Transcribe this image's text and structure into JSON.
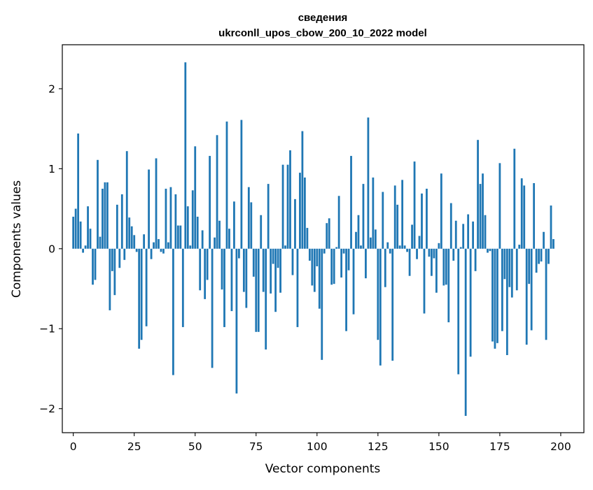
{
  "chart_data": {
    "type": "bar",
    "title": "сведения",
    "subtitle": "ukrconll_upos_cbow_200_10_2022 model",
    "xlabel": "Vector components",
    "ylabel": "Components values",
    "xlim": [
      -4.5,
      209.5
    ],
    "ylim": [
      -2.3,
      2.55
    ],
    "x_ticks": [
      0,
      25,
      50,
      75,
      100,
      125,
      150,
      175,
      200
    ],
    "y_ticks": [
      -2,
      -1,
      0,
      1,
      2
    ],
    "y_tick_labels": [
      "−2",
      "−1",
      "0",
      "1",
      "2"
    ],
    "grid": false,
    "bar_color": "#1f77b4",
    "values": [
      0.4,
      0.5,
      1.44,
      0.34,
      -0.05,
      0.04,
      0.53,
      0.25,
      -0.45,
      -0.39,
      1.11,
      0.15,
      0.75,
      0.83,
      0.83,
      -0.77,
      -0.28,
      -0.58,
      0.55,
      -0.24,
      0.68,
      -0.14,
      1.22,
      0.39,
      0.28,
      0.17,
      -0.04,
      -1.25,
      -1.14,
      0.18,
      -0.97,
      0.99,
      -0.13,
      0.08,
      1.13,
      0.12,
      -0.04,
      -0.06,
      0.75,
      0.08,
      0.77,
      -1.58,
      0.68,
      0.29,
      0.29,
      -0.98,
      2.33,
      0.53,
      0.04,
      0.73,
      1.28,
      0.4,
      -0.52,
      0.23,
      -0.63,
      -0.39,
      1.16,
      -1.49,
      0.14,
      1.42,
      0.35,
      -0.51,
      -0.98,
      1.59,
      0.25,
      -0.78,
      0.59,
      -1.81,
      -0.12,
      1.61,
      -0.54,
      -0.74,
      0.77,
      0.58,
      -0.35,
      -1.04,
      -1.04,
      0.42,
      -0.54,
      -1.26,
      0.81,
      -0.56,
      -0.19,
      -0.79,
      -0.24,
      -0.55,
      1.05,
      0.04,
      1.05,
      1.23,
      -0.33,
      0.62,
      -0.98,
      0.95,
      1.47,
      0.89,
      0.26,
      -0.15,
      -0.46,
      -0.54,
      -0.22,
      -0.75,
      -1.39,
      -0.06,
      0.32,
      0.38,
      -0.45,
      -0.44,
      0.02,
      0.66,
      -0.36,
      -0.06,
      -1.03,
      -0.27,
      1.16,
      -0.82,
      0.21,
      0.42,
      0.04,
      0.81,
      -0.37,
      1.64,
      0.14,
      0.89,
      0.24,
      -1.14,
      -1.46,
      0.71,
      -0.48,
      0.08,
      -0.06,
      -1.4,
      0.79,
      0.55,
      0.04,
      0.86,
      0.04,
      -0.04,
      -0.34,
      0.3,
      1.09,
      -0.13,
      0.16,
      0.69,
      -0.81,
      0.75,
      -0.1,
      -0.34,
      -0.12,
      -0.55,
      0.07,
      0.94,
      -0.46,
      -0.45,
      -0.92,
      0.57,
      -0.15,
      0.35,
      -1.57,
      0.02,
      0.31,
      -2.09,
      0.43,
      -1.35,
      0.34,
      -0.28,
      1.36,
      0.81,
      0.94,
      0.42,
      -0.05,
      -0.03,
      -1.16,
      -1.25,
      -1.18,
      1.07,
      -1.03,
      -0.38,
      -1.33,
      -0.48,
      -0.61,
      1.25,
      -0.52,
      0.05,
      0.88,
      0.79,
      -1.2,
      -0.44,
      -1.02,
      0.82,
      -0.3,
      -0.19,
      -0.16,
      0.21,
      -1.14,
      -0.19,
      0.54,
      0.12
    ]
  }
}
